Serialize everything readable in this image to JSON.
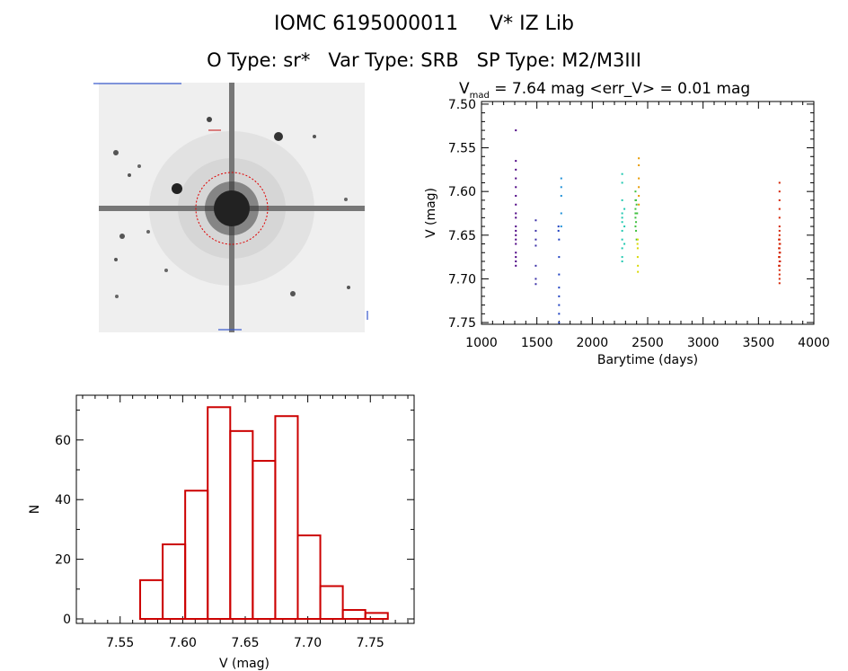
{
  "header": {
    "title": "IOMC 6195000011     V* IZ Lib",
    "subtitle": "O Type: sr*   Var Type: SRB   SP Type: M2/M3III"
  },
  "thumbnail": {
    "description_icon": "star-field-image",
    "colors": {
      "background": "#efefef",
      "star": "#111111",
      "circle": "#e00000"
    }
  },
  "chart_data": [
    {
      "type": "scatter",
      "title_parts": {
        "v": "V",
        "sub": "mad",
        "rest": " = 7.64 mag <err_V> = 0.01 mag"
      },
      "xlabel": "Barytime (days)",
      "ylabel": "V (mag)",
      "xlim": [
        1000,
        4000
      ],
      "ylim": [
        7.752,
        7.497
      ],
      "xticks": [
        1000,
        1500,
        2000,
        2500,
        3000,
        3500,
        4000
      ],
      "yticks": [
        "7.50",
        "7.55",
        "7.60",
        "7.65",
        "7.70",
        "7.75"
      ],
      "series": [
        {
          "color": "#4b0082",
          "values": [
            [
              1310,
              7.53
            ],
            [
              1310,
              7.565
            ],
            [
              1310,
              7.575
            ],
            [
              1310,
              7.585
            ],
            [
              1310,
              7.595
            ],
            [
              1310,
              7.605
            ],
            [
              1310,
              7.615
            ],
            [
              1310,
              7.625
            ],
            [
              1310,
              7.63
            ],
            [
              1310,
              7.64
            ],
            [
              1310,
              7.645
            ],
            [
              1310,
              7.65
            ],
            [
              1310,
              7.655
            ],
            [
              1310,
              7.66
            ],
            [
              1310,
              7.67
            ],
            [
              1310,
              7.675
            ],
            [
              1310,
              7.68
            ],
            [
              1310,
              7.685
            ]
          ]
        },
        {
          "color": "#3a2fa6",
          "values": [
            [
              1490,
              7.633
            ],
            [
              1490,
              7.645
            ],
            [
              1490,
              7.655
            ],
            [
              1490,
              7.662
            ],
            [
              1490,
              7.685
            ],
            [
              1490,
              7.7
            ],
            [
              1490,
              7.706
            ]
          ]
        },
        {
          "color": "#1e40c0",
          "values": [
            [
              1695,
              7.64
            ],
            [
              1695,
              7.645
            ],
            [
              1700,
              7.655
            ],
            [
              1700,
              7.675
            ],
            [
              1700,
              7.695
            ],
            [
              1700,
              7.71
            ],
            [
              1700,
              7.72
            ],
            [
              1700,
              7.73
            ],
            [
              1700,
              7.74
            ],
            [
              1700,
              7.75
            ]
          ]
        },
        {
          "color": "#1e90d8",
          "values": [
            [
              1720,
              7.585
            ],
            [
              1720,
              7.595
            ],
            [
              1720,
              7.605
            ],
            [
              1720,
              7.625
            ],
            [
              1720,
              7.64
            ]
          ]
        },
        {
          "color": "#20c8b0",
          "values": [
            [
              2270,
              7.58
            ],
            [
              2270,
              7.59
            ],
            [
              2270,
              7.61
            ],
            [
              2270,
              7.625
            ],
            [
              2270,
              7.63
            ],
            [
              2270,
              7.635
            ],
            [
              2270,
              7.645
            ],
            [
              2270,
              7.655
            ],
            [
              2270,
              7.665
            ],
            [
              2270,
              7.675
            ],
            [
              2270,
              7.68
            ],
            [
              2290,
              7.62
            ],
            [
              2290,
              7.64
            ],
            [
              2290,
              7.66
            ]
          ]
        },
        {
          "color": "#40c040",
          "values": [
            [
              2390,
              7.6
            ],
            [
              2390,
              7.61
            ],
            [
              2390,
              7.62
            ],
            [
              2390,
              7.625
            ],
            [
              2390,
              7.63
            ],
            [
              2390,
              7.64
            ],
            [
              2395,
              7.61
            ],
            [
              2395,
              7.635
            ],
            [
              2395,
              7.645
            ],
            [
              2400,
              7.655
            ],
            [
              2400,
              7.615
            ],
            [
              2405,
              7.625
            ]
          ]
        },
        {
          "color": "#d8d800",
          "values": [
            [
              2410,
              7.655
            ],
            [
              2410,
              7.665
            ],
            [
              2410,
              7.675
            ],
            [
              2412,
              7.685
            ],
            [
              2412,
              7.692
            ],
            [
              2408,
              7.66
            ]
          ]
        },
        {
          "color": "#e89a00",
          "values": [
            [
              2420,
              7.562
            ],
            [
              2420,
              7.57
            ],
            [
              2420,
              7.585
            ],
            [
              2420,
              7.595
            ],
            [
              2420,
              7.605
            ],
            [
              2420,
              7.615
            ]
          ]
        },
        {
          "color": "#d42000",
          "values": [
            [
              3690,
              7.59
            ],
            [
              3690,
              7.6
            ],
            [
              3690,
              7.61
            ],
            [
              3690,
              7.62
            ],
            [
              3690,
              7.63
            ],
            [
              3690,
              7.64
            ],
            [
              3690,
              7.645
            ],
            [
              3690,
              7.65
            ],
            [
              3690,
              7.655
            ],
            [
              3690,
              7.66
            ],
            [
              3690,
              7.665
            ],
            [
              3690,
              7.67
            ],
            [
              3690,
              7.675
            ],
            [
              3690,
              7.68
            ],
            [
              3690,
              7.685
            ],
            [
              3690,
              7.69
            ],
            [
              3690,
              7.695
            ],
            [
              3690,
              7.7
            ],
            [
              3690,
              7.705
            ],
            [
              3685,
              7.655
            ],
            [
              3685,
              7.665
            ],
            [
              3685,
              7.675
            ],
            [
              3685,
              7.685
            ],
            [
              3695,
              7.66
            ],
            [
              3695,
              7.67
            ],
            [
              3695,
              7.68
            ]
          ]
        }
      ]
    },
    {
      "type": "bar",
      "xlabel": "V (mag)",
      "ylabel": "N",
      "xlim": [
        7.515,
        7.785
      ],
      "ylim": [
        -1.5,
        75
      ],
      "xticks": [
        "7.55",
        "7.60",
        "7.65",
        "7.70",
        "7.75"
      ],
      "yticks": [
        0,
        20,
        40,
        60
      ],
      "bar_color": "#cc0000",
      "bins": [
        {
          "x0": 7.53,
          "x1": 7.548,
          "value": 0
        },
        {
          "x0": 7.548,
          "x1": 7.566,
          "value": 0
        },
        {
          "x0": 7.566,
          "x1": 7.584,
          "value": 13
        },
        {
          "x0": 7.584,
          "x1": 7.602,
          "value": 25
        },
        {
          "x0": 7.602,
          "x1": 7.62,
          "value": 43
        },
        {
          "x0": 7.62,
          "x1": 7.638,
          "value": 71
        },
        {
          "x0": 7.638,
          "x1": 7.656,
          "value": 63
        },
        {
          "x0": 7.656,
          "x1": 7.674,
          "value": 53
        },
        {
          "x0": 7.674,
          "x1": 7.692,
          "value": 68
        },
        {
          "x0": 7.692,
          "x1": 7.71,
          "value": 28
        },
        {
          "x0": 7.71,
          "x1": 7.728,
          "value": 11
        },
        {
          "x0": 7.728,
          "x1": 7.746,
          "value": 3
        },
        {
          "x0": 7.746,
          "x1": 7.764,
          "value": 2
        },
        {
          "x0": 7.764,
          "x1": 7.782,
          "value": 0
        }
      ]
    }
  ]
}
